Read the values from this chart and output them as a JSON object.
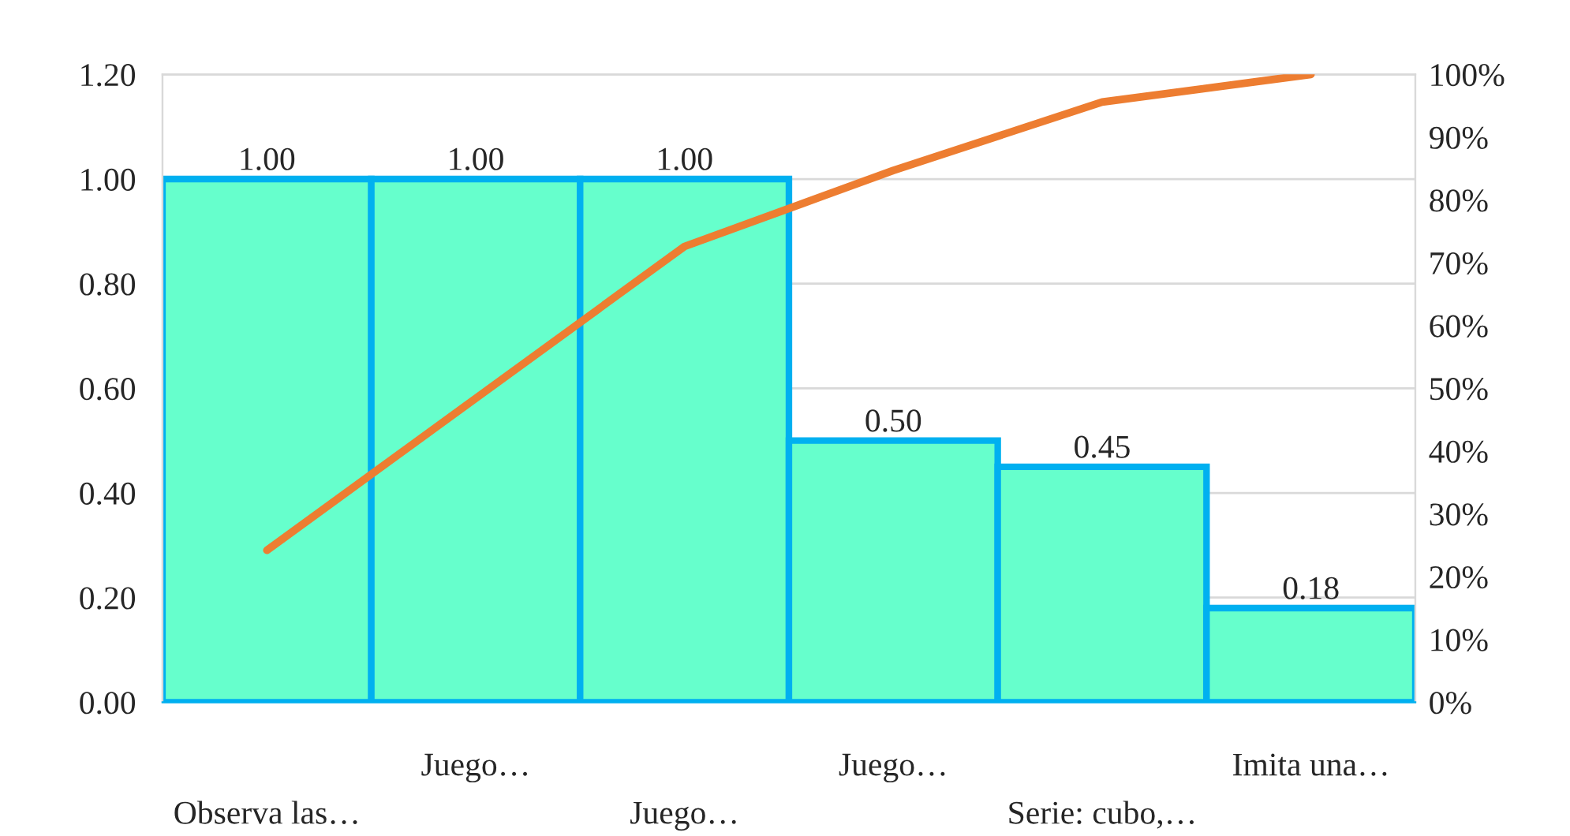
{
  "chart_data": {
    "type": "bar",
    "categories": [
      "Observa las…",
      "Juego…",
      "Juego…",
      "Juego…",
      "Serie: cubo,…",
      "Imita una…"
    ],
    "series": [
      {
        "color": "#66ffcc",
        "values": [
          1.0,
          1.0,
          1.0,
          0.5,
          0.45,
          0.18
        ],
        "value_labels": [
          "1.00",
          "1.00",
          "1.00",
          "0.50",
          "0.45",
          "0.18"
        ]
      },
      {
        "type": "line",
        "axis": "y2",
        "color": "#ed7d31",
        "values": [
          24.2,
          48.4,
          72.6,
          84.7,
          95.6,
          100
        ]
      }
    ],
    "grid": "y",
    "marker": "none",
    "ylim": [
      0,
      1.2
    ],
    "yticks": [
      {
        "value": 0,
        "label": "0.00"
      },
      {
        "value": 0.2,
        "label": "0.20"
      },
      {
        "value": 0.4,
        "label": "0.40"
      },
      {
        "value": 0.6,
        "label": "0.60"
      },
      {
        "value": 0.8,
        "label": "0.80"
      },
      {
        "value": 1.0,
        "label": "1.00"
      },
      {
        "value": 1.2,
        "label": "1.20"
      }
    ],
    "y2lim": [
      0,
      100
    ],
    "y2ticks": [
      {
        "value": 0,
        "label": "0%"
      },
      {
        "value": 10,
        "label": "10%"
      },
      {
        "value": 20,
        "label": "20%"
      },
      {
        "value": 30,
        "label": "30%"
      },
      {
        "value": 40,
        "label": "40%"
      },
      {
        "value": 50,
        "label": "50%"
      },
      {
        "value": 60,
        "label": "60%"
      },
      {
        "value": 70,
        "label": "70%"
      },
      {
        "value": 80,
        "label": "80%"
      },
      {
        "value": 90,
        "label": "90%"
      },
      {
        "value": 100,
        "label": "100%"
      }
    ]
  }
}
